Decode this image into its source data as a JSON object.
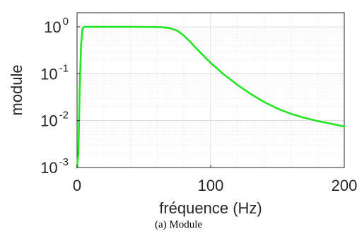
{
  "chart_data": {
    "type": "line",
    "xlabel": "fréquence (Hz)",
    "ylabel": "module",
    "xlim": [
      0,
      200
    ],
    "ylim": [
      0.001,
      2
    ],
    "yscale": "log",
    "x_ticks": [
      0,
      100,
      200
    ],
    "y_ticks": [
      {
        "base": "10",
        "exp": "0",
        "value": 1
      },
      {
        "base": "10",
        "exp": "-1",
        "value": 0.1
      },
      {
        "base": "10",
        "exp": "-2",
        "value": 0.01
      },
      {
        "base": "10",
        "exp": "-3",
        "value": 0.001
      }
    ],
    "grid": true,
    "minor_grid": true,
    "series": [
      {
        "color": "#22e622",
        "x": [
          0,
          1,
          2,
          3,
          4,
          5,
          6,
          10,
          20,
          40,
          60,
          65,
          70,
          75,
          80,
          85,
          90,
          100,
          110,
          120,
          130,
          140,
          150,
          160,
          170,
          180,
          190,
          200
        ],
        "y": [
          0.001,
          0.002,
          0.05,
          0.4,
          0.9,
          0.98,
          1.0,
          1.0,
          1.0,
          1.0,
          0.99,
          0.97,
          0.93,
          0.83,
          0.65,
          0.47,
          0.33,
          0.17,
          0.096,
          0.058,
          0.037,
          0.025,
          0.018,
          0.014,
          0.0115,
          0.0098,
          0.0086,
          0.0075
        ]
      }
    ]
  },
  "caption": "(a) Module"
}
